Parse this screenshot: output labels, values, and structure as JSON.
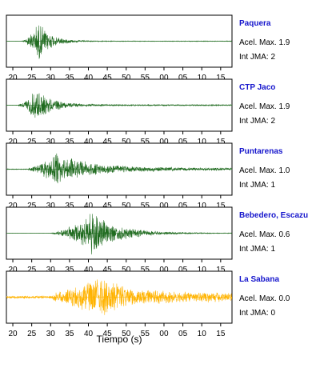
{
  "chart_data": {
    "type": "line",
    "xlabel": "Tiempo (s)",
    "tick_labels": [
      "20",
      "25",
      "30",
      "35",
      "40",
      "45",
      "50",
      "55",
      "00",
      "05",
      "10",
      "15"
    ],
    "colors": {
      "trace": "#1f6b1f",
      "trace_alt": "#ffb300",
      "station_name": "#1515cc",
      "text": "#000000"
    },
    "panels": [
      {
        "station": "Paquera",
        "acel_max": "Acel. Max. 1.9",
        "int_jma": "Int JMA: 2",
        "trace_color": "#1f6b1f",
        "envelope": {
          "onset": 22.3,
          "peak_time": 27.0,
          "peak_amp": 0.85,
          "decay": 3.2,
          "rise": 1.2,
          "floor": 0.015
        }
      },
      {
        "station": "CTP Jaco",
        "acel_max": "Acel. Max. 1.9",
        "int_jma": "Int JMA: 2",
        "trace_color": "#1f6b1f",
        "envelope": {
          "onset": 21.5,
          "peak_time": 26.0,
          "peak_amp": 0.7,
          "decay": 4.5,
          "rise": 2.0,
          "floor": 0.03
        }
      },
      {
        "station": "Puntarenas",
        "acel_max": "Acel. Max. 1.0",
        "int_jma": "Int JMA: 1",
        "trace_color": "#1f6b1f",
        "envelope": {
          "onset": 24.0,
          "peak_time": 31.5,
          "peak_amp": 0.7,
          "decay": 9.0,
          "rise": 3.0,
          "floor": 0.06
        }
      },
      {
        "station": "Bebedero, Escazu",
        "acel_max": "Acel. Max. 0.6",
        "int_jma": "Int JMA: 1",
        "trace_color": "#1f6b1f",
        "envelope": {
          "onset": 29.8,
          "peak_time": 41.0,
          "peak_amp": 0.9,
          "decay": 7.0,
          "rise": 5.0,
          "floor": 0.01
        }
      },
      {
        "station": "La Sabana",
        "acel_max": "Acel. Max. 0.0",
        "int_jma": "Int JMA: 0",
        "trace_color": "#ffb300",
        "envelope": {
          "onset": 30.5,
          "peak_time": 43.0,
          "peak_amp": 0.9,
          "decay": 8.0,
          "rise": 6.0,
          "floor": 0.2
        }
      }
    ]
  }
}
